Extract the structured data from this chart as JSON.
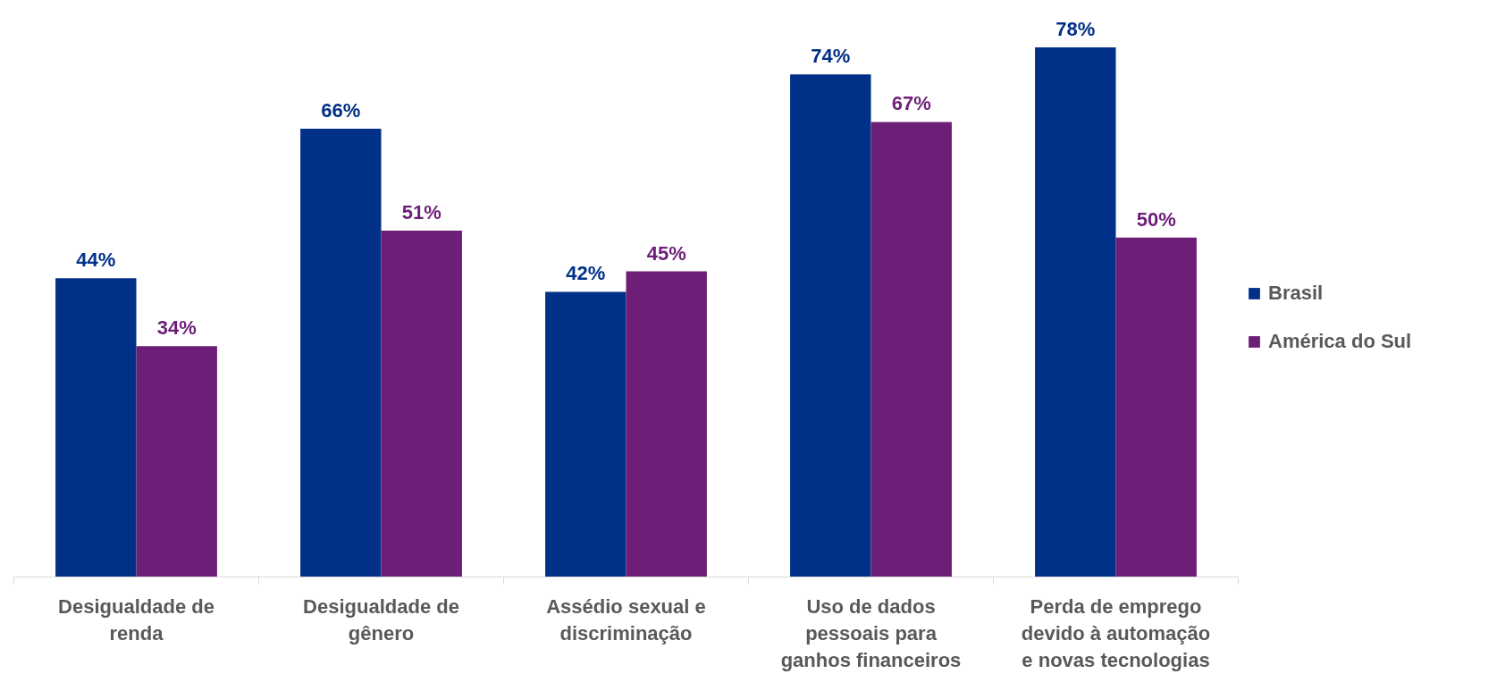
{
  "chart_data": {
    "type": "bar",
    "categories": [
      "Desigualdade de renda",
      "Desigualdade de gênero",
      "Assédio sexual e discriminação",
      "Uso de dados pessoais para ganhos financeiros",
      "Perda de emprego devido à automação e novas tecnologias"
    ],
    "series": [
      {
        "name": "Brasil",
        "color": "#003087",
        "values": [
          44,
          66,
          42,
          74,
          78
        ],
        "value_labels": [
          "44%",
          "66%",
          "42%",
          "74%",
          "78%"
        ]
      },
      {
        "name": "América do Sul",
        "color": "#6d1f77",
        "values": [
          34,
          51,
          45,
          67,
          50
        ],
        "value_labels": [
          "34%",
          "51%",
          "45%",
          "67%",
          "50%"
        ]
      }
    ],
    "legend": "right",
    "grid": false
  }
}
